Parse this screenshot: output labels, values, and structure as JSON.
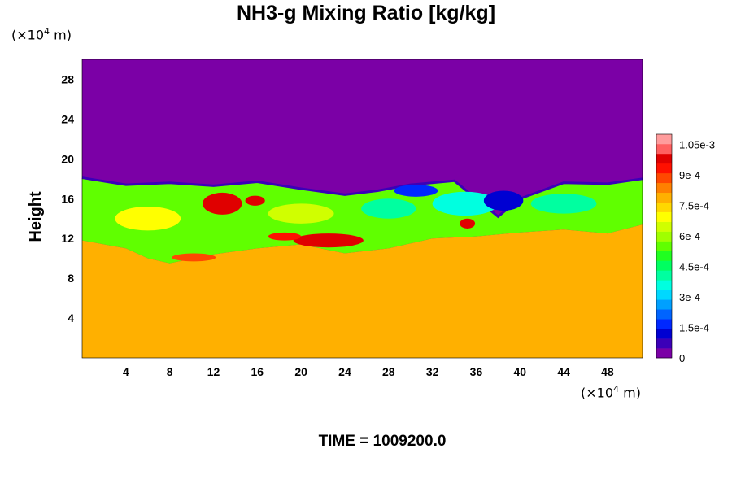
{
  "chart_data": {
    "type": "heatmap",
    "title": "NH3-g Mixing Ratio [kg/kg]",
    "ylabel": "Height",
    "x_unit_prefix": "(×10",
    "x_unit_exp": "4",
    "x_unit_suffix": " m)",
    "y_unit_prefix": "(×10",
    "y_unit_exp": "4",
    "y_unit_suffix": " m)",
    "footer": "TIME = 1009200.0",
    "xlim": [
      0,
      51.2
    ],
    "ylim": [
      0,
      30
    ],
    "xticks": [
      4,
      8,
      12,
      16,
      20,
      24,
      28,
      32,
      36,
      40,
      44,
      48
    ],
    "yticks": [
      4,
      8,
      12,
      16,
      20,
      24,
      28
    ],
    "colorbar": {
      "range": [
        0,
        0.0011
      ],
      "tick_values": [
        0,
        0.00015,
        0.0003,
        0.00045,
        0.0006,
        0.00075,
        0.0009,
        0.00105
      ],
      "tick_labels": [
        "0",
        "1.5e-4",
        "3e-4",
        "4.5e-4",
        "6e-4",
        "7.5e-4",
        "9e-4",
        "1.05e-3"
      ],
      "colors": [
        "#7b00a6",
        "#3b00b8",
        "#0000d2",
        "#0028ff",
        "#0064ff",
        "#00a0ff",
        "#00d8ff",
        "#00ffe0",
        "#00ffa0",
        "#00ff60",
        "#20ff20",
        "#60ff00",
        "#a0ff00",
        "#d0ff00",
        "#ffff00",
        "#ffd800",
        "#ffb000",
        "#ff8000",
        "#ff4800",
        "#ff1000",
        "#e00000",
        "#ff6060",
        "#ff9c9c"
      ]
    },
    "field": {
      "top_value": 0,
      "bottom_value": 0.00077,
      "cloud_top_profile": [
        [
          0,
          18.1
        ],
        [
          4,
          17.4
        ],
        [
          8,
          17.6
        ],
        [
          12,
          17.3
        ],
        [
          16,
          17.7
        ],
        [
          20,
          17.0
        ],
        [
          24,
          16.4
        ],
        [
          27,
          16.8
        ],
        [
          30,
          17.4
        ],
        [
          34,
          17.8
        ],
        [
          36,
          16.0
        ],
        [
          38,
          14.2
        ],
        [
          40,
          16.0
        ],
        [
          44,
          17.6
        ],
        [
          48,
          17.5
        ],
        [
          51.2,
          18.0
        ]
      ],
      "cloud_base_profile": [
        [
          0,
          11.8
        ],
        [
          4,
          11.0
        ],
        [
          6,
          10.0
        ],
        [
          8,
          9.5
        ],
        [
          12,
          10.4
        ],
        [
          16,
          11.0
        ],
        [
          20,
          11.4
        ],
        [
          24,
          10.5
        ],
        [
          28,
          11.0
        ],
        [
          32,
          12.0
        ],
        [
          36,
          12.2
        ],
        [
          40,
          12.6
        ],
        [
          44,
          12.9
        ],
        [
          48,
          12.5
        ],
        [
          51.2,
          13.4
        ]
      ],
      "layer_value": 0.00055,
      "plumes": [
        {
          "x": 12.8,
          "y": 15.5,
          "rx": 1.8,
          "ry": 1.1,
          "value": 0.001
        },
        {
          "x": 15.8,
          "y": 15.8,
          "rx": 0.9,
          "ry": 0.5,
          "value": 0.00098
        },
        {
          "x": 35.2,
          "y": 13.5,
          "rx": 0.7,
          "ry": 0.5,
          "value": 0.001
        },
        {
          "x": 22.5,
          "y": 11.8,
          "rx": 3.2,
          "ry": 0.7,
          "value": 0.00096
        },
        {
          "x": 10.2,
          "y": 10.1,
          "rx": 2.0,
          "ry": 0.4,
          "value": 0.0009
        },
        {
          "x": 18.5,
          "y": 12.2,
          "rx": 1.5,
          "ry": 0.4,
          "value": 0.00092
        },
        {
          "x": 35.0,
          "y": 15.5,
          "rx": 3.0,
          "ry": 1.2,
          "value": 0.00035
        },
        {
          "x": 28.0,
          "y": 15.0,
          "rx": 2.5,
          "ry": 1.0,
          "value": 0.0004
        },
        {
          "x": 44.0,
          "y": 15.5,
          "rx": 3.0,
          "ry": 1.0,
          "value": 0.0004
        },
        {
          "x": 38.5,
          "y": 15.8,
          "rx": 1.8,
          "ry": 1.0,
          "value": 0.00012
        },
        {
          "x": 30.5,
          "y": 16.8,
          "rx": 2.0,
          "ry": 0.6,
          "value": 0.00015
        },
        {
          "x": 6.0,
          "y": 14.0,
          "rx": 3.0,
          "ry": 1.2,
          "value": 0.0007
        },
        {
          "x": 20.0,
          "y": 14.5,
          "rx": 3.0,
          "ry": 1.0,
          "value": 0.00065
        }
      ]
    }
  }
}
